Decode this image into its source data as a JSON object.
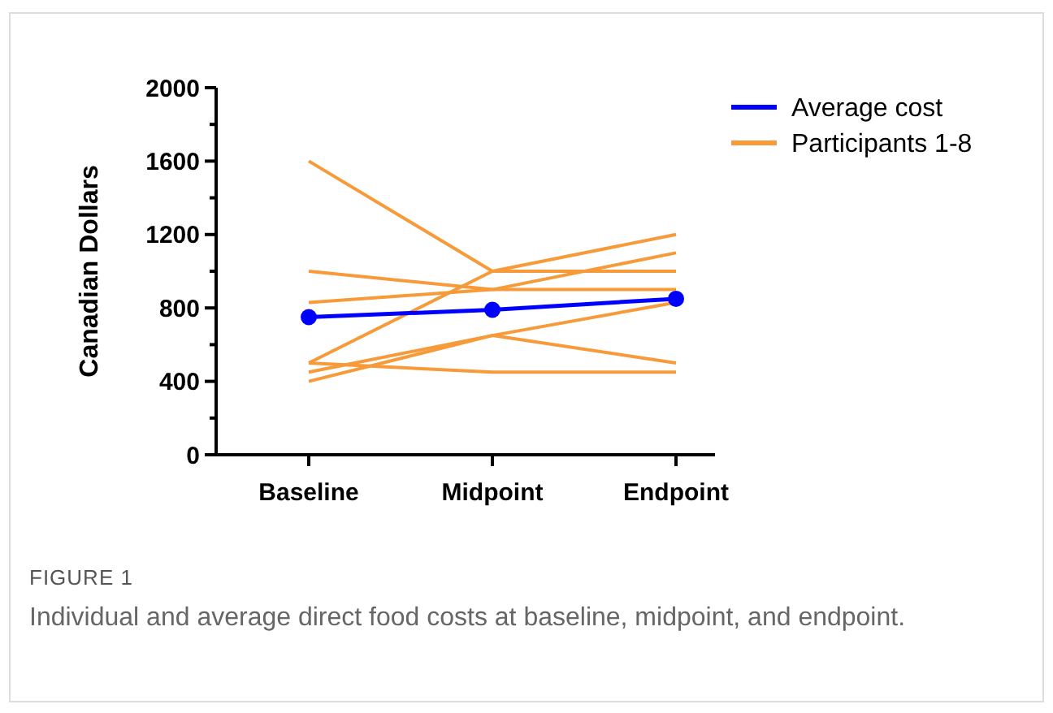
{
  "chart_data": {
    "type": "line",
    "ylabel": "Canadian Dollars",
    "categories": [
      "Baseline",
      "Midpoint",
      "Endpoint"
    ],
    "ylim": [
      0,
      2000
    ],
    "yticks": [
      0,
      {
        "value": 200,
        "label": null
      },
      400,
      {
        "value": 600,
        "label": null
      },
      800,
      {
        "value": 1000,
        "label": null
      },
      1200,
      {
        "value": 1400,
        "label": null
      },
      1600,
      {
        "value": 1800,
        "label": null
      },
      2000
    ],
    "legend": "top right",
    "grid": false,
    "series": [
      {
        "name": "Participants 1-8",
        "color": "#f79a3a",
        "marker": "none",
        "values": [
          1600,
          1000,
          1000
        ]
      },
      {
        "color": "#f79a3a",
        "marker": "none",
        "values": [
          1000,
          900,
          900
        ]
      },
      {
        "color": "#f79a3a",
        "marker": "none",
        "values": [
          830,
          900,
          1100
        ]
      },
      {
        "color": "#f79a3a",
        "marker": "none",
        "values": [
          500,
          1000,
          1200
        ]
      },
      {
        "color": "#f79a3a",
        "marker": "none",
        "values": [
          500,
          450,
          450
        ]
      },
      {
        "color": "#f79a3a",
        "marker": "none",
        "values": [
          450,
          650,
          830
        ]
      },
      {
        "color": "#f79a3a",
        "marker": "none",
        "values": [
          400,
          650,
          500
        ]
      },
      {
        "name": "Average cost",
        "color": "#0000ff",
        "marker": "circle",
        "values": [
          750,
          790,
          850
        ]
      }
    ],
    "annotations": [
      "FIGURE 1",
      "Individual and average direct food costs at baseline, midpoint, and endpoint."
    ]
  }
}
